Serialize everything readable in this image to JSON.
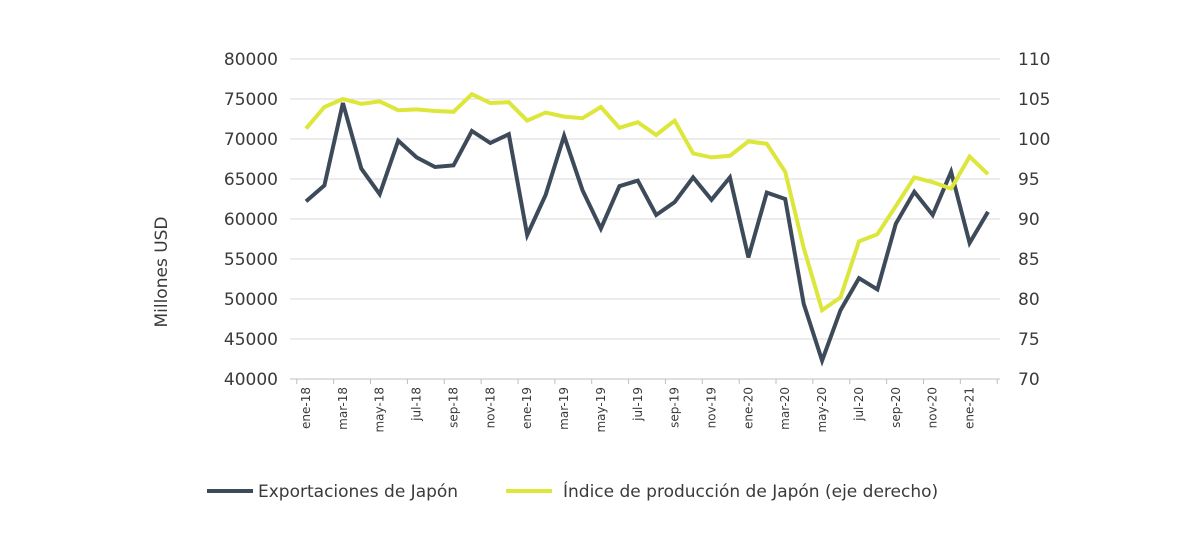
{
  "chart_data": {
    "type": "line",
    "ylabel": "Millones USD",
    "ylim": [
      40000,
      80000
    ],
    "y_ticks": [
      "40000",
      "45000",
      "50000",
      "55000",
      "60000",
      "65000",
      "70000",
      "75000",
      "80000"
    ],
    "y2lim": [
      70,
      110
    ],
    "y2_ticks": [
      "70",
      "75",
      "80",
      "85",
      "90",
      "95",
      "100",
      "105",
      "110"
    ],
    "x": [
      "ene-18",
      "feb-18",
      "mar-18",
      "abr-18",
      "may-18",
      "jun-18",
      "jul-18",
      "ago-18",
      "sep-18",
      "oct-18",
      "nov-18",
      "dic-18",
      "ene-19",
      "feb-19",
      "mar-19",
      "abr-19",
      "may-19",
      "jun-19",
      "jul-19",
      "ago-19",
      "sep-19",
      "oct-19",
      "nov-19",
      "dic-19",
      "ene-20",
      "feb-20",
      "mar-20",
      "abr-20",
      "may-20",
      "jun-20",
      "jul-20",
      "ago-20",
      "sep-20",
      "oct-20",
      "nov-20",
      "dic-20",
      "ene-21",
      "feb-21"
    ],
    "x_tick_labels": [
      "ene-18",
      "mar-18",
      "may-18",
      "jul-18",
      "sep-18",
      "nov-18",
      "ene-19",
      "mar-19",
      "may-19",
      "jul-19",
      "sep-19",
      "nov-19",
      "ene-20",
      "mar-20",
      "may-20",
      "jul-20",
      "sep-20",
      "nov-20",
      "ene-21"
    ],
    "grid": true,
    "legend_position": "bottom",
    "series": [
      {
        "name": "Exportaciones de Japón",
        "axis": "left",
        "color": "#3d4a59",
        "values": [
          62200,
          64200,
          74500,
          66300,
          63100,
          69800,
          67700,
          66500,
          66700,
          71000,
          69500,
          70600,
          58000,
          63000,
          70400,
          63600,
          58800,
          64100,
          64800,
          60500,
          62100,
          65200,
          62400,
          65200,
          55200,
          63300,
          62500,
          49400,
          42300,
          48600,
          52600,
          51200,
          59400,
          63400,
          60500,
          65900,
          57000,
          60900
        ]
      },
      {
        "name": "Índice de producción de Japón (eje derecho)",
        "axis": "right",
        "color": "#dde63a",
        "values": [
          101.3,
          104.0,
          105.0,
          104.4,
          104.7,
          103.6,
          103.7,
          103.5,
          103.4,
          105.6,
          104.5,
          104.6,
          102.3,
          103.3,
          102.8,
          102.6,
          104.0,
          101.4,
          102.1,
          100.5,
          102.3,
          98.2,
          97.7,
          97.9,
          99.7,
          99.4,
          95.9,
          86.4,
          78.6,
          80.2,
          87.2,
          88.1,
          91.6,
          95.2,
          94.6,
          93.8,
          97.8,
          95.6
        ]
      }
    ]
  }
}
